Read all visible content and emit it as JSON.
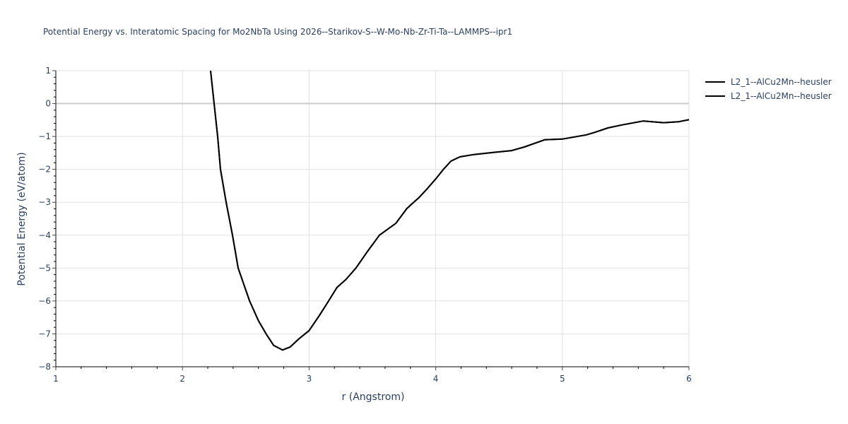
{
  "chart_data": {
    "type": "line",
    "title": "Potential Energy vs. Interatomic Spacing for Mo2NbTa Using 2026--Starikov-S--W-Mo-Nb-Zr-Ti-Ta--LAMMPS--ipr1",
    "xlabel": "r (Angstrom)",
    "ylabel": "Potential Energy (eV/atom)",
    "xlim": [
      1,
      6
    ],
    "ylim": [
      -8,
      1
    ],
    "xticks": [
      1,
      2,
      3,
      4,
      5,
      6
    ],
    "yticks": [
      1,
      0,
      -1,
      -2,
      -3,
      -4,
      -5,
      -6,
      -7,
      -8
    ],
    "grid": true,
    "legend_position": "top-right outside",
    "series": [
      {
        "name": "L2_1--AlCu2Mn--heusler",
        "color": "#000000",
        "x": [
          2.222,
          2.25,
          2.278,
          2.3,
          2.345,
          2.395,
          2.44,
          2.53,
          2.6,
          2.66,
          2.72,
          2.79,
          2.85,
          2.92,
          3.0,
          3.08,
          3.154,
          3.22,
          3.29,
          3.37,
          3.46,
          3.555,
          3.685,
          3.77,
          3.8,
          3.87,
          3.93,
          4.0,
          4.06,
          4.12,
          4.19,
          4.3,
          4.466,
          4.6,
          4.7,
          4.86,
          5.0,
          5.19,
          5.26,
          5.36,
          5.47,
          5.64,
          5.8,
          5.92,
          6.0
        ],
        "y": [
          1.0,
          0.0,
          -1.0,
          -2.0,
          -3.0,
          -4.0,
          -5.0,
          -6.0,
          -6.6,
          -7.0,
          -7.35,
          -7.49,
          -7.4,
          -7.15,
          -6.9,
          -6.45,
          -6.0,
          -5.59,
          -5.35,
          -5.0,
          -4.5,
          -4.0,
          -3.64,
          -3.2,
          -3.09,
          -2.85,
          -2.6,
          -2.29,
          -2.0,
          -1.75,
          -1.62,
          -1.55,
          -1.48,
          -1.43,
          -1.32,
          -1.1,
          -1.08,
          -0.95,
          -0.87,
          -0.74,
          -0.65,
          -0.53,
          -0.58,
          -0.55,
          -0.49
        ]
      },
      {
        "name": "L2_1--AlCu2Mn--heusler",
        "color": "#000000",
        "x": [
          2.222,
          2.25,
          2.278,
          2.3,
          2.345,
          2.395,
          2.44,
          2.53,
          2.6,
          2.66,
          2.72,
          2.79,
          2.85,
          2.92,
          3.0,
          3.08,
          3.154,
          3.22,
          3.29,
          3.37,
          3.46,
          3.555,
          3.685,
          3.77,
          3.8,
          3.87,
          3.93,
          4.0,
          4.06,
          4.12,
          4.19,
          4.3,
          4.466,
          4.6,
          4.7,
          4.86,
          5.0,
          5.19,
          5.26,
          5.36,
          5.47,
          5.64,
          5.8,
          5.92,
          6.0
        ],
        "y": [
          1.0,
          0.0,
          -1.0,
          -2.0,
          -3.0,
          -4.0,
          -5.0,
          -6.0,
          -6.6,
          -7.0,
          -7.35,
          -7.49,
          -7.4,
          -7.15,
          -6.9,
          -6.45,
          -6.0,
          -5.59,
          -5.35,
          -5.0,
          -4.5,
          -4.0,
          -3.64,
          -3.2,
          -3.09,
          -2.85,
          -2.6,
          -2.29,
          -2.0,
          -1.75,
          -1.62,
          -1.55,
          -1.48,
          -1.43,
          -1.32,
          -1.1,
          -1.08,
          -0.95,
          -0.87,
          -0.74,
          -0.65,
          -0.53,
          -0.58,
          -0.55,
          -0.49
        ]
      }
    ]
  },
  "legend": {
    "items": [
      {
        "label": "L2_1--AlCu2Mn--heusler"
      },
      {
        "label": "L2_1--AlCu2Mn--heusler"
      }
    ]
  },
  "colors": {
    "text": "#2a3f5f",
    "grid": "#e1e1e1",
    "zeroline": "#cccccc",
    "axis": "#000000",
    "line": "#000000"
  }
}
